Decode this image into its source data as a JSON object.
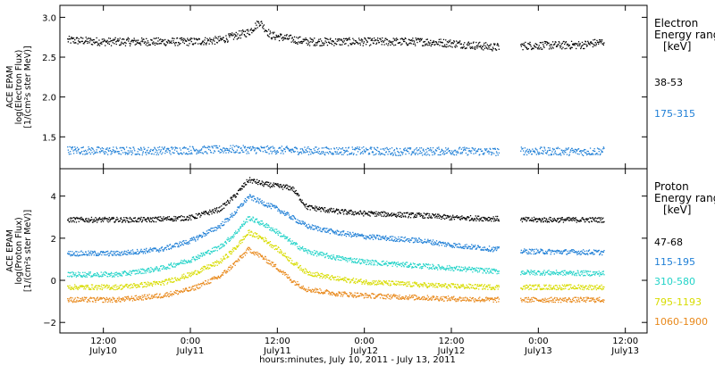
{
  "figure": {
    "xlabel": "hours:minutes, July 10, 2011 - July 13, 2011",
    "x_ticks": [
      {
        "t": 12,
        "time": "12:00",
        "date": "July10"
      },
      {
        "t": 24,
        "time": "0:00",
        "date": "July11"
      },
      {
        "t": 36,
        "time": "12:00",
        "date": "July11"
      },
      {
        "t": 48,
        "time": "0:00",
        "date": "July12"
      },
      {
        "t": 60,
        "time": "12:00",
        "date": "July12"
      },
      {
        "t": 72,
        "time": "0:00",
        "date": "July13"
      },
      {
        "t": 84,
        "time": "12:00",
        "date": "July13"
      }
    ]
  },
  "chart_data": [
    {
      "type": "scatter",
      "title": "",
      "xlabel": "hours:minutes, July 10, 2011 - July 13, 2011",
      "x_unit": "hours since July 10, 2011 00:00 UT",
      "xlim": [
        6,
        87
      ],
      "ylabel_lines": [
        "ACE EPAM",
        "log(Electron Flux)",
        "[1/(cm²s ster MeV)]"
      ],
      "ylim": [
        1.1,
        3.15
      ],
      "y_ticks": [
        1.5,
        2.0,
        2.5,
        3.0
      ],
      "y_tick_labels": [
        "1.5",
        "2.0",
        "2.5",
        "3.0"
      ],
      "legend_title": [
        "Electron",
        "Energy ranges",
        "[keV]"
      ],
      "data_gap_hours": [
        66.5,
        69.5
      ],
      "series": [
        {
          "name": "38-53",
          "color": "#000000",
          "x": [
            7,
            12,
            18,
            24,
            28,
            32,
            33.5,
            35,
            40,
            48,
            56,
            60,
            66,
            70,
            78,
            81
          ],
          "y": [
            2.72,
            2.7,
            2.7,
            2.7,
            2.72,
            2.82,
            2.95,
            2.78,
            2.7,
            2.7,
            2.7,
            2.68,
            2.63,
            2.65,
            2.66,
            2.7
          ]
        },
        {
          "name": "175-315",
          "color": "#1f7fd6",
          "x": [
            7,
            12,
            18,
            24,
            30,
            36,
            42,
            48,
            54,
            60,
            66,
            70,
            78,
            81
          ],
          "y": [
            1.34,
            1.33,
            1.33,
            1.34,
            1.35,
            1.34,
            1.33,
            1.33,
            1.32,
            1.33,
            1.32,
            1.33,
            1.32,
            1.33
          ]
        }
      ]
    },
    {
      "type": "scatter",
      "title": "",
      "xlabel": "hours:minutes, July 10, 2011 - July 13, 2011",
      "x_unit": "hours since July 10, 2011 00:00 UT",
      "xlim": [
        6,
        87
      ],
      "ylabel_lines": [
        "ACE EPAM",
        "log(Proton Flux)",
        "[1/(cm²s ster MeV)]"
      ],
      "ylim": [
        -2.5,
        5.3
      ],
      "y_ticks": [
        -2,
        0,
        2,
        4
      ],
      "y_tick_labels": [
        "−2",
        "0",
        "2",
        "4"
      ],
      "legend_title": [
        "Proton",
        "Energy ranges",
        "[keV]"
      ],
      "data_gap_hours": [
        66.5,
        69.5
      ],
      "series": [
        {
          "name": "47-68",
          "color": "#000000",
          "x": [
            7,
            18,
            24,
            28,
            30,
            32,
            34,
            36,
            38,
            40,
            44,
            48,
            56,
            60,
            66,
            70,
            81
          ],
          "y": [
            2.9,
            2.9,
            3.0,
            3.4,
            4.0,
            4.8,
            4.6,
            4.5,
            4.4,
            3.5,
            3.3,
            3.2,
            3.1,
            3.0,
            2.95,
            2.9,
            2.9
          ]
        },
        {
          "name": "115-195",
          "color": "#1f7fd6",
          "x": [
            7,
            14,
            20,
            24,
            28,
            30,
            32,
            34,
            36,
            38,
            40,
            44,
            48,
            56,
            60,
            66,
            70,
            81
          ],
          "y": [
            1.3,
            1.3,
            1.5,
            1.9,
            2.6,
            3.2,
            4.0,
            3.7,
            3.4,
            3.0,
            2.6,
            2.3,
            2.1,
            1.9,
            1.7,
            1.5,
            1.4,
            1.35
          ]
        },
        {
          "name": "310-580",
          "color": "#22d3c8",
          "x": [
            7,
            14,
            20,
            24,
            28,
            30,
            32,
            34,
            36,
            38,
            40,
            44,
            48,
            56,
            60,
            66,
            70,
            81
          ],
          "y": [
            0.3,
            0.3,
            0.6,
            1.0,
            1.6,
            2.2,
            3.0,
            2.7,
            2.3,
            1.8,
            1.4,
            1.1,
            0.9,
            0.7,
            0.6,
            0.45,
            0.4,
            0.35
          ]
        },
        {
          "name": "795-1193",
          "color": "#d8dc00",
          "x": [
            7,
            14,
            20,
            24,
            28,
            30,
            32,
            34,
            36,
            38,
            40,
            44,
            48,
            56,
            60,
            66,
            70,
            81
          ],
          "y": [
            -0.3,
            -0.3,
            -0.1,
            0.3,
            0.9,
            1.5,
            2.3,
            2.0,
            1.5,
            0.9,
            0.4,
            0.1,
            -0.05,
            -0.2,
            -0.25,
            -0.3,
            -0.3,
            -0.3
          ]
        },
        {
          "name": "1060-1900",
          "color": "#e8881a",
          "x": [
            7,
            14,
            20,
            24,
            28,
            30,
            32,
            34,
            36,
            38,
            40,
            44,
            48,
            56,
            60,
            66,
            70,
            81
          ],
          "y": [
            -0.9,
            -0.9,
            -0.7,
            -0.4,
            0.2,
            0.8,
            1.5,
            1.1,
            0.6,
            0.0,
            -0.4,
            -0.6,
            -0.7,
            -0.8,
            -0.85,
            -0.9,
            -0.9,
            -0.9
          ]
        }
      ]
    }
  ]
}
